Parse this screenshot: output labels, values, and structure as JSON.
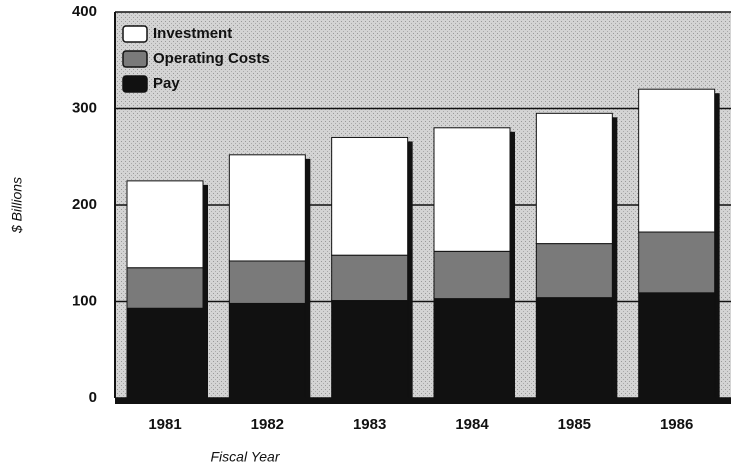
{
  "chart_data": {
    "type": "stacked_bar",
    "categories": [
      "1981",
      "1982",
      "1983",
      "1984",
      "1985",
      "1986"
    ],
    "series": [
      {
        "name": "Pay",
        "color": "#111111",
        "values": [
          93,
          98,
          101,
          103,
          104,
          109
        ]
      },
      {
        "name": "Operating Costs",
        "color": "#7a7a7a",
        "values": [
          42,
          44,
          47,
          49,
          56,
          63
        ]
      },
      {
        "name": "Investment",
        "color": "#ffffff",
        "values": [
          90,
          110,
          122,
          128,
          135,
          148
        ]
      }
    ],
    "ylabel": "$ Billions",
    "xlabel": "Fiscal Year",
    "ylim": [
      0,
      400
    ],
    "yticks": [
      0,
      100,
      200,
      300,
      400
    ],
    "grid": true
  }
}
